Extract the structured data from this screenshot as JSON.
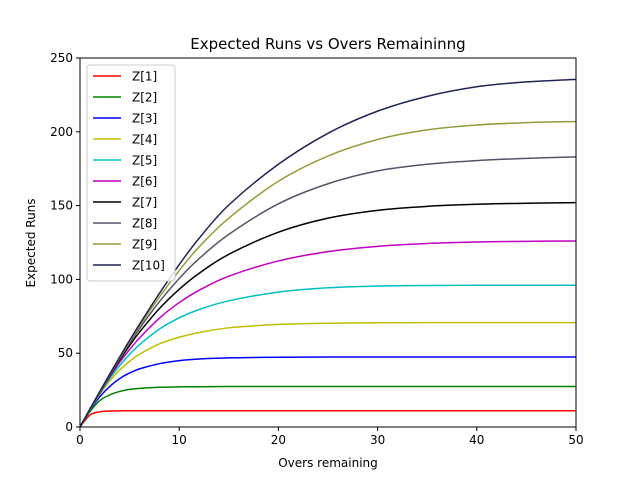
{
  "chart_data": {
    "type": "line",
    "title": "Expected Runs vs Overs Remaininng",
    "xlabel": "Overs remaining",
    "ylabel": "Expected Runs",
    "xlim": [
      0,
      50
    ],
    "ylim": [
      0,
      250
    ],
    "xticks": [
      0,
      10,
      20,
      30,
      40,
      50
    ],
    "yticks": [
      0,
      50,
      100,
      150,
      200,
      250
    ],
    "grid": false,
    "legend_position": "top-left",
    "x": [
      0,
      1,
      2,
      3,
      4,
      5,
      6,
      8,
      10,
      12,
      15,
      20,
      25,
      30,
      35,
      40,
      45,
      50
    ],
    "series": [
      {
        "name": "Z[1]",
        "color": "#ff0000",
        "values": [
          0,
          8.1,
          10.3,
          10.8,
          10.95,
          11,
          11,
          11,
          11,
          11,
          11,
          11,
          11,
          11,
          11,
          11,
          11,
          11
        ]
      },
      {
        "name": "Z[2]",
        "color": "#008000",
        "values": [
          0,
          10.4,
          17.9,
          21.8,
          24.1,
          25.5,
          26.2,
          26.9,
          27.2,
          27.3,
          27.4,
          27.4,
          27.4,
          27.4,
          27.4,
          27.4,
          27.4,
          27.4
        ]
      },
      {
        "name": "Z[3]",
        "color": "#0000ff",
        "values": [
          0,
          11.3,
          20.5,
          27.5,
          32.8,
          36.6,
          39.4,
          42.9,
          45,
          46.1,
          46.8,
          47.3,
          47.4,
          47.4,
          47.4,
          47.4,
          47.4,
          47.4
        ]
      },
      {
        "name": "Z[4]",
        "color": "#bfbf00",
        "values": [
          0,
          11.6,
          22.2,
          31.2,
          38.6,
          44.5,
          49.3,
          56.3,
          60.8,
          64,
          67.2,
          69.5,
          70.3,
          70.6,
          70.7,
          70.7,
          70.7,
          70.7
        ]
      },
      {
        "name": "Z[5]",
        "color": "#00bfbf",
        "values": [
          0,
          11.8,
          22.8,
          32.8,
          41.6,
          49.2,
          55.8,
          66.3,
          74,
          79.6,
          85.5,
          91.4,
          94.3,
          95.5,
          95.9,
          96,
          96,
          96
        ]
      },
      {
        "name": "Z[6]",
        "color": "#bf00bf",
        "values": [
          0,
          11.9,
          23.3,
          34,
          43.8,
          52.5,
          60.3,
          73.7,
          84.3,
          92.6,
          102.2,
          112.5,
          118.8,
          122.4,
          124.3,
          125.3,
          125.8,
          126
        ]
      },
      {
        "name": "Z[7]",
        "color": "#000000",
        "values": [
          0,
          12,
          23.6,
          34.8,
          45.4,
          55.2,
          64.3,
          80.2,
          93.3,
          104.1,
          117,
          132,
          141.5,
          146.8,
          149.5,
          150.9,
          151.6,
          152
        ]
      },
      {
        "name": "Z[8]",
        "color": "#545466",
        "values": [
          0,
          12,
          23.8,
          35.3,
          46.3,
          56.8,
          66.7,
          84.9,
          100.6,
          114,
          130.5,
          151.2,
          164.8,
          173.5,
          178,
          180.5,
          182,
          183
        ]
      },
      {
        "name": "Z[9]",
        "color": "#959a3f",
        "values": [
          0,
          12.1,
          24,
          35.6,
          46.9,
          57.8,
          68.3,
          88.1,
          106,
          122,
          141.5,
          166.5,
          183.6,
          194.8,
          201.3,
          204.6,
          206.2,
          207
        ]
      },
      {
        "name": "Z[10]",
        "color": "#1f2454",
        "values": [
          0,
          12.1,
          24.1,
          35.9,
          47.4,
          58.7,
          69.6,
          90.5,
          110,
          127.8,
          150.4,
          178,
          199,
          214,
          224,
          230.5,
          233.8,
          235.5
        ]
      }
    ]
  }
}
